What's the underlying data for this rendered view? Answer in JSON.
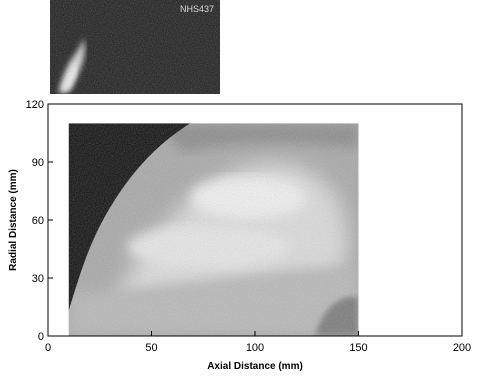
{
  "inset": {
    "label": "NHS437"
  },
  "chart_data": {
    "type": "heatmap",
    "title": "",
    "xlabel": "Axial Distance (mm)",
    "ylabel": "Radial Distance (mm)",
    "xlim": [
      0,
      200
    ],
    "ylim": [
      0,
      120
    ],
    "x_ticks": [
      0,
      50,
      100,
      150,
      200
    ],
    "y_ticks": [
      0,
      30,
      60,
      90,
      120
    ],
    "x_tick_labels": [
      "0",
      "50",
      "100",
      "150",
      "200"
    ],
    "y_tick_labels": [
      "0",
      "30",
      "60",
      "90",
      "120"
    ],
    "image_extent": {
      "x": [
        10,
        150
      ],
      "y": [
        0,
        110
      ]
    },
    "grid": false,
    "colormap": "grayscale"
  }
}
